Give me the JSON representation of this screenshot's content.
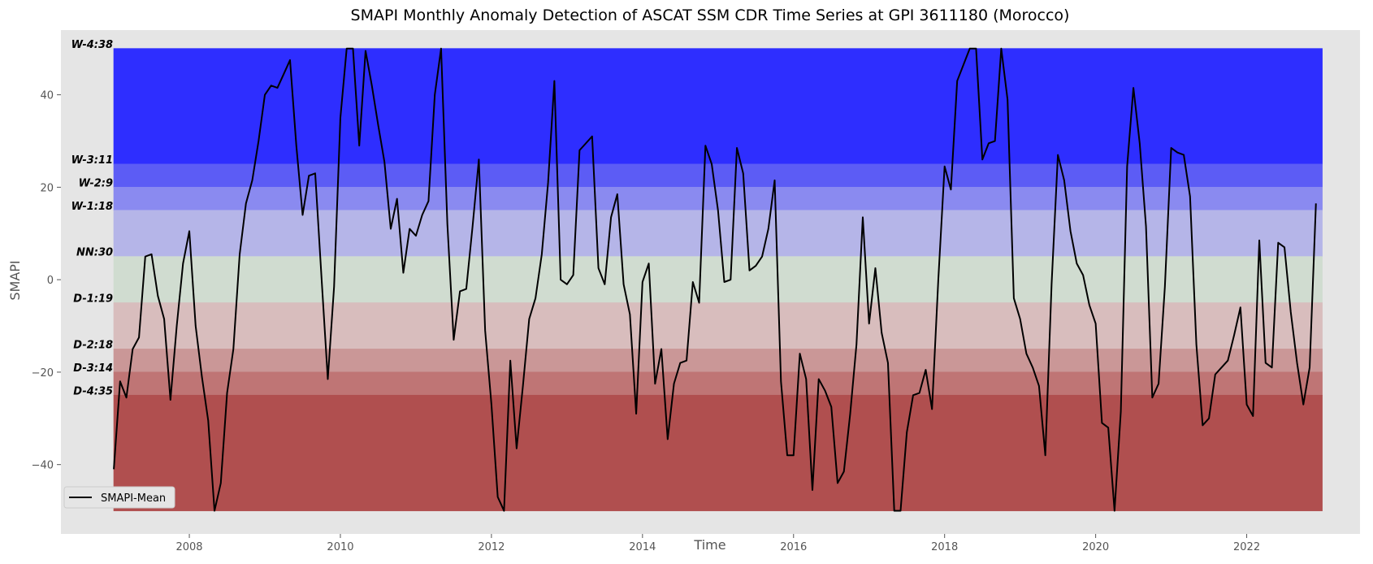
{
  "chart_data": {
    "type": "line",
    "title": "SMAPI Monthly Anomaly Detection of ASCAT SSM CDR Time Series at GPI 3611180 (Morocco)",
    "xlabel": "Time",
    "ylabel": "SMAPI",
    "xlim": [
      2006.3,
      2023.5
    ],
    "ylim": [
      -55,
      54
    ],
    "grid": false,
    "legend_position": "lower-left",
    "xticks": [
      2008,
      2010,
      2012,
      2014,
      2016,
      2018,
      2020,
      2022
    ],
    "xtick_labels": [
      "2008",
      "2010",
      "2012",
      "2014",
      "2016",
      "2018",
      "2020",
      "2022"
    ],
    "yticks": [
      -40,
      -20,
      0,
      20,
      40
    ],
    "ytick_labels": [
      "−40",
      "−20",
      "0",
      "20",
      "40"
    ],
    "colors": {
      "axes_background": "#e5e5e5",
      "line": "#000000",
      "title_text": "#000000",
      "axis_text": "#555555"
    },
    "bands": [
      {
        "label": "W-4:38",
        "from": 25,
        "to": 50,
        "color": "#2e2eff"
      },
      {
        "label": "W-3:11",
        "from": 20,
        "to": 25,
        "color": "#5c5cf5"
      },
      {
        "label": "W-2:9",
        "from": 15,
        "to": 20,
        "color": "#8a8af0"
      },
      {
        "label": "W-1:18",
        "from": 5,
        "to": 15,
        "color": "#b5b5e8"
      },
      {
        "label": "NN:30",
        "from": -5,
        "to": 5,
        "color": "#d0dcd0"
      },
      {
        "label": "D-1:19",
        "from": -15,
        "to": -5,
        "color": "#d8bdbd"
      },
      {
        "label": "D-2:18",
        "from": -20,
        "to": -15,
        "color": "#ca9797"
      },
      {
        "label": "D-3:14",
        "from": -25,
        "to": -20,
        "color": "#bf7575"
      },
      {
        "label": "D-4:35",
        "from": -50,
        "to": -25,
        "color": "#b04f4f"
      }
    ],
    "band_x_range": [
      2007.0,
      2023.0
    ],
    "series": [
      {
        "name": "SMAPI-Mean",
        "start_year": 2007,
        "start_month": 1,
        "values": [
          -41,
          -22,
          -25.5,
          -15,
          -12.5,
          5,
          5.5,
          -3.5,
          -8.5,
          -26,
          -10,
          3.5,
          10.5,
          -10,
          -21,
          -30.5,
          -50,
          -44,
          -24.5,
          -15,
          5.5,
          16.5,
          21.5,
          30,
          40,
          42,
          41.5,
          44.5,
          47.5,
          29,
          14,
          22.5,
          23,
          0.5,
          -21.5,
          -1.5,
          35,
          50,
          50,
          29,
          49.5,
          42,
          33.5,
          25.5,
          11,
          17.5,
          1.5,
          11,
          9.5,
          14,
          17,
          40,
          50,
          12,
          -13,
          -2.5,
          -2,
          11.5,
          26,
          -11,
          -27,
          -47,
          -50,
          -17.5,
          -36.5,
          -23,
          -8.5,
          -4,
          5.5,
          21,
          43,
          0,
          -1,
          1,
          28,
          29.5,
          31,
          2.5,
          -1,
          13.5,
          18.5,
          -1,
          -7.5,
          -29,
          -0.5,
          3.5,
          -22.5,
          -15,
          -34.5,
          -22.5,
          -18,
          -17.5,
          -0.5,
          -5,
          29,
          25,
          15,
          -0.5,
          0,
          28.5,
          23,
          2,
          3,
          5,
          11,
          21.5,
          -22,
          -38,
          -38,
          -16,
          -21.5,
          -45.5,
          -21.5,
          -24,
          -27.5,
          -44,
          -41.5,
          -29,
          -14,
          13.5,
          -9.5,
          2.5,
          -11.5,
          -18,
          -50,
          -50,
          -33,
          -25,
          -24.5,
          -19.5,
          -28,
          0,
          24.5,
          19.5,
          43,
          46.5,
          50,
          50,
          26,
          29.5,
          30,
          50,
          39,
          -4,
          -8.5,
          -16,
          -19,
          -23,
          -38,
          -1,
          27,
          21.5,
          10.5,
          3.5,
          1,
          -5.5,
          -9.5,
          -31,
          -32,
          -50,
          -28.5,
          24.5,
          41.5,
          29.5,
          11.5,
          -25.5,
          -22.5,
          -1.5,
          28.5,
          27.5,
          27,
          18,
          -14,
          -31.5,
          -30,
          -20.5,
          -19,
          -17.5,
          -12,
          -6,
          -27,
          -29.5,
          8.5,
          -18,
          -19,
          8,
          7,
          -7,
          -18,
          -27,
          -19,
          16.5
        ]
      }
    ]
  }
}
